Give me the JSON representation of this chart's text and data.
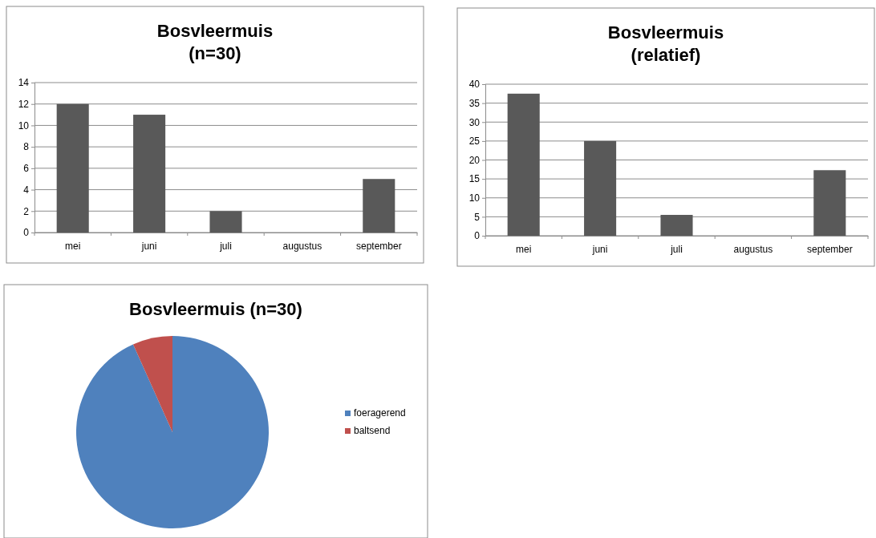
{
  "chart_data": [
    {
      "type": "bar",
      "title": "Bosvleermuis\n(n=30)",
      "categories": [
        "mei",
        "juni",
        "juli",
        "augustus",
        "september"
      ],
      "values": [
        12,
        11,
        2,
        0,
        5
      ],
      "color": "#595959",
      "ylim": [
        0,
        14
      ],
      "yticks": [
        0,
        2,
        4,
        6,
        8,
        10,
        12,
        14
      ],
      "grid": "y"
    },
    {
      "type": "bar",
      "title": "Bosvleermuis\n(relatief)",
      "categories": [
        "mei",
        "juni",
        "juli",
        "augustus",
        "september"
      ],
      "values": [
        37.5,
        25,
        5.5,
        0,
        17.3
      ],
      "color": "#595959",
      "ylim": [
        0,
        40
      ],
      "yticks": [
        0,
        5,
        10,
        15,
        20,
        25,
        30,
        35,
        40
      ],
      "grid": "y"
    },
    {
      "type": "pie",
      "title": "Bosvleermuis (n=30)",
      "categories": [
        "foeragerend",
        "baltsend"
      ],
      "values": [
        93.3,
        6.7
      ],
      "colors": [
        "#4f81bd",
        "#c0504d"
      ],
      "legend": "right"
    }
  ]
}
